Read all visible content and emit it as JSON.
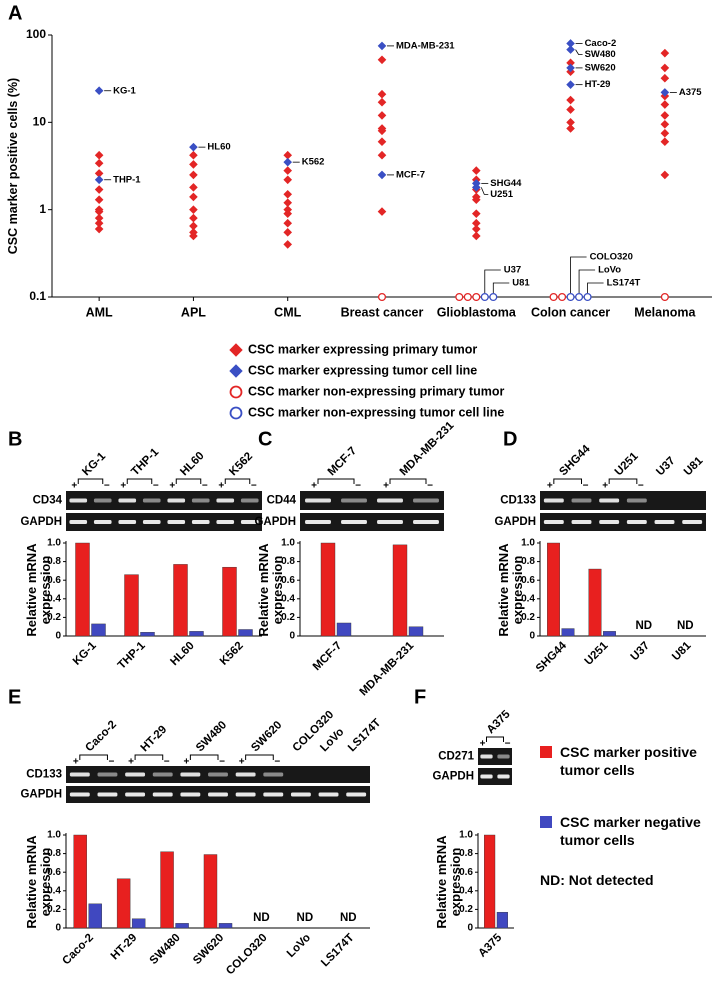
{
  "chart_data": [
    {
      "type": "scatter",
      "panel": "A",
      "ylabel": "CSC marker positive cells (%)",
      "log_y": true,
      "categories": [
        "AML",
        "APL",
        "CML",
        "Breast cancer",
        "Glioblastoma",
        "Colon cancer",
        "Melanoma"
      ],
      "ylim": [
        0.1,
        100
      ],
      "yticks": [
        0.1,
        1,
        10,
        100
      ],
      "series": [
        {
          "name": "CSC marker expressing primary tumor",
          "color": "#e32626",
          "marker": "diamond",
          "filled": true,
          "x": [
            "AML",
            "AML",
            "AML",
            "AML",
            "AML",
            "AML",
            "AML",
            "AML",
            "AML",
            "AML",
            "APL",
            "APL",
            "APL",
            "APL",
            "APL",
            "APL",
            "APL",
            "APL",
            "APL",
            "APL",
            "CML",
            "CML",
            "CML",
            "CML",
            "CML",
            "CML",
            "CML",
            "CML",
            "CML",
            "CML",
            "Breast cancer",
            "Breast cancer",
            "Breast cancer",
            "Breast cancer",
            "Breast cancer",
            "Breast cancer",
            "Breast cancer",
            "Breast cancer",
            "Breast cancer",
            "Glioblastoma",
            "Glioblastoma",
            "Glioblastoma",
            "Glioblastoma",
            "Glioblastoma",
            "Glioblastoma",
            "Glioblastoma",
            "Glioblastoma",
            "Glioblastoma",
            "Colon cancer",
            "Colon cancer",
            "Colon cancer",
            "Colon cancer",
            "Colon cancer",
            "Colon cancer",
            "Melanoma",
            "Melanoma",
            "Melanoma",
            "Melanoma",
            "Melanoma",
            "Melanoma",
            "Melanoma",
            "Melanoma",
            "Melanoma",
            "Melanoma"
          ],
          "values": [
            4.2,
            3.4,
            2.6,
            1.7,
            1.3,
            1.0,
            0.95,
            0.8,
            0.7,
            0.6,
            4.2,
            3.3,
            2.5,
            1.8,
            1.4,
            1.0,
            0.8,
            0.65,
            0.55,
            0.5,
            4.2,
            2.8,
            2.2,
            1.5,
            1.2,
            1.0,
            0.9,
            0.7,
            0.55,
            0.4,
            52,
            21,
            17,
            12,
            8.5,
            8,
            6,
            4.2,
            0.95,
            2.8,
            2.2,
            1.7,
            1.4,
            1.3,
            0.9,
            0.7,
            0.6,
            0.5,
            48,
            38,
            18,
            14,
            10,
            8.5,
            62,
            42,
            32,
            20,
            16,
            12,
            9.5,
            7.5,
            6,
            2.5
          ]
        },
        {
          "name": "CSC marker expressing tumor cell line",
          "color": "#3a4fc4",
          "marker": "diamond",
          "filled": true,
          "x": [
            "AML",
            "AML",
            "APL",
            "CML",
            "Breast cancer",
            "Breast cancer",
            "Glioblastoma",
            "Glioblastoma",
            "Colon cancer",
            "Colon cancer",
            "Colon cancer",
            "Colon cancer",
            "Melanoma"
          ],
          "values": [
            23,
            2.2,
            5.2,
            3.5,
            75,
            2.5,
            2.0,
            1.8,
            80,
            68,
            42,
            27,
            22
          ],
          "labels": [
            "KG-1",
            "THP-1",
            "HL60",
            "K562",
            "MDA-MB-231",
            "MCF-7",
            "SHG44",
            "U251",
            "Caco-2",
            "SW480",
            "SW620",
            "HT-29",
            "A375"
          ]
        },
        {
          "name": "CSC marker non-expressing primary tumor",
          "color": "#e32626",
          "marker": "circle",
          "filled": false,
          "x": [
            "Breast cancer",
            "Glioblastoma",
            "Glioblastoma",
            "Glioblastoma",
            "Colon cancer",
            "Colon cancer",
            "Melanoma"
          ],
          "values": [
            0.1,
            0.1,
            0.1,
            0.1,
            0.1,
            0.1,
            0.1
          ]
        },
        {
          "name": "CSC marker non-expressing tumor cell line",
          "color": "#3a4fc4",
          "marker": "circle",
          "filled": false,
          "x": [
            "Glioblastoma",
            "Glioblastoma",
            "Colon cancer",
            "Colon cancer",
            "Colon cancer"
          ],
          "values": [
            0.1,
            0.1,
            0.1,
            0.1,
            0.1
          ],
          "labels": [
            "U37",
            "U81",
            "COLO320",
            "LoVo",
            "LS174T"
          ]
        }
      ]
    },
    {
      "type": "bar",
      "panel": "B",
      "ylabel": "Relative mRNA expression",
      "gel_rows": [
        "CD34",
        "GAPDH"
      ],
      "signs": [
        "+",
        "−"
      ],
      "categories": [
        "KG-1",
        "THP-1",
        "HL60",
        "K562"
      ],
      "ylim": [
        0,
        1
      ],
      "yticks": [
        0,
        0.2,
        0.4,
        0.6,
        0.8,
        {
          "value": 1,
          "label": "1.0"
        }
      ],
      "series": [
        {
          "color": "#e8201f",
          "values": [
            1.0,
            0.66,
            0.77,
            0.74
          ]
        },
        {
          "color": "#4048c0",
          "values": [
            0.13,
            0.04,
            0.05,
            0.07
          ]
        }
      ]
    },
    {
      "type": "bar",
      "panel": "C",
      "ylabel": "Relative mRNA expression",
      "gel_rows": [
        "CD44",
        "GAPDH"
      ],
      "signs": [
        "+",
        "−"
      ],
      "categories": [
        "MCF-7",
        "MDA-MB-231"
      ],
      "ylim": [
        0,
        1
      ],
      "yticks": [
        0,
        0.2,
        0.4,
        0.6,
        0.8,
        {
          "value": 1,
          "label": "1.0"
        }
      ],
      "series": [
        {
          "color": "#e8201f",
          "values": [
            1.0,
            0.98
          ]
        },
        {
          "color": "#4048c0",
          "values": [
            0.14,
            0.1
          ]
        }
      ]
    },
    {
      "type": "bar",
      "panel": "D",
      "ylabel": "Relative mRNA expression",
      "gel_rows": [
        "CD133",
        "GAPDH"
      ],
      "signs": [
        "+",
        "−"
      ],
      "nd_label": "ND",
      "categories": [
        "SHG44",
        "U251",
        "U37",
        "U81"
      ],
      "ylim": [
        0,
        1
      ],
      "yticks": [
        0,
        0.2,
        0.4,
        0.6,
        0.8,
        {
          "value": 1,
          "label": "1.0"
        }
      ],
      "series": [
        {
          "color": "#e8201f",
          "values": [
            1.0,
            0.72,
            null,
            null
          ]
        },
        {
          "color": "#4048c0",
          "values": [
            0.08,
            0.05,
            null,
            null
          ]
        }
      ]
    },
    {
      "type": "bar",
      "panel": "E",
      "ylabel": "Relative mRNA expression",
      "gel_rows": [
        "CD133",
        "GAPDH"
      ],
      "signs": [
        "+",
        "−"
      ],
      "nd_label": "ND",
      "categories": [
        "Caco-2",
        "HT-29",
        "SW480",
        "SW620",
        "COLO320",
        "LoVo",
        "LS174T"
      ],
      "ylim": [
        0,
        1
      ],
      "yticks": [
        0,
        0.2,
        0.4,
        0.6,
        0.8,
        {
          "value": 1,
          "label": "1.0"
        }
      ],
      "series": [
        {
          "color": "#e8201f",
          "values": [
            1.0,
            0.53,
            0.82,
            0.79,
            null,
            null,
            null
          ]
        },
        {
          "color": "#4048c0",
          "values": [
            0.26,
            0.1,
            0.05,
            0.05,
            null,
            null,
            null
          ]
        }
      ]
    },
    {
      "type": "bar",
      "panel": "F",
      "ylabel": "Relative mRNA expression",
      "gel_rows": [
        "CD271",
        "GAPDH"
      ],
      "signs": [
        "+",
        "−"
      ],
      "note": "ND: Not detected",
      "categories": [
        "A375"
      ],
      "ylim": [
        0,
        1
      ],
      "yticks": [
        0,
        0.2,
        0.4,
        0.6,
        0.8,
        {
          "value": 1,
          "label": "1.0"
        }
      ],
      "series": [
        {
          "name": "CSC marker positive tumor cells",
          "color": "#e8201f",
          "values": [
            1.0
          ]
        },
        {
          "name": "CSC marker negative tumor cells",
          "color": "#4048c0",
          "values": [
            0.17
          ]
        }
      ]
    }
  ]
}
